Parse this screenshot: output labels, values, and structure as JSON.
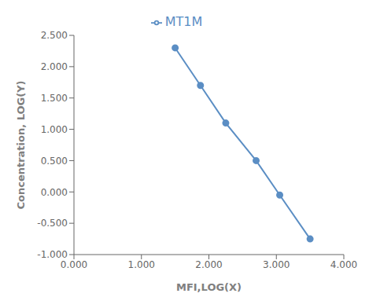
{
  "chart_data": {
    "type": "line",
    "x": [
      1.5,
      1.875,
      2.25,
      2.7,
      3.05,
      3.5
    ],
    "series": [
      {
        "name": "MT1M",
        "color": "#5b8ec4",
        "marker": "circle",
        "values": [
          2.3,
          1.7,
          1.1,
          0.5,
          -0.05,
          -0.75
        ]
      }
    ],
    "xlabel": "MFI,LOG(X)",
    "ylabel": "Concentration, LOG(Y)",
    "xlim": [
      0.0,
      4.0
    ],
    "ylim": [
      -1.0,
      2.5
    ],
    "xticks": [
      {
        "value": 0,
        "label": "0.000"
      },
      {
        "value": 1,
        "label": "1.000"
      },
      {
        "value": 2,
        "label": "2.000"
      },
      {
        "value": 3,
        "label": "3.000"
      },
      {
        "value": 4,
        "label": "4.000"
      }
    ],
    "yticks": [
      {
        "value": -1,
        "label": "-1.000"
      },
      {
        "value": -0.5,
        "label": "-0.500"
      },
      {
        "value": 0,
        "label": "0.000"
      },
      {
        "value": 0.5,
        "label": "0.500"
      },
      {
        "value": 1,
        "label": "1.000"
      },
      {
        "value": 1.5,
        "label": "1.500"
      },
      {
        "value": 2,
        "label": "2.000"
      },
      {
        "value": 2.5,
        "label": "2.500"
      }
    ],
    "legend": "top",
    "grid": false
  }
}
